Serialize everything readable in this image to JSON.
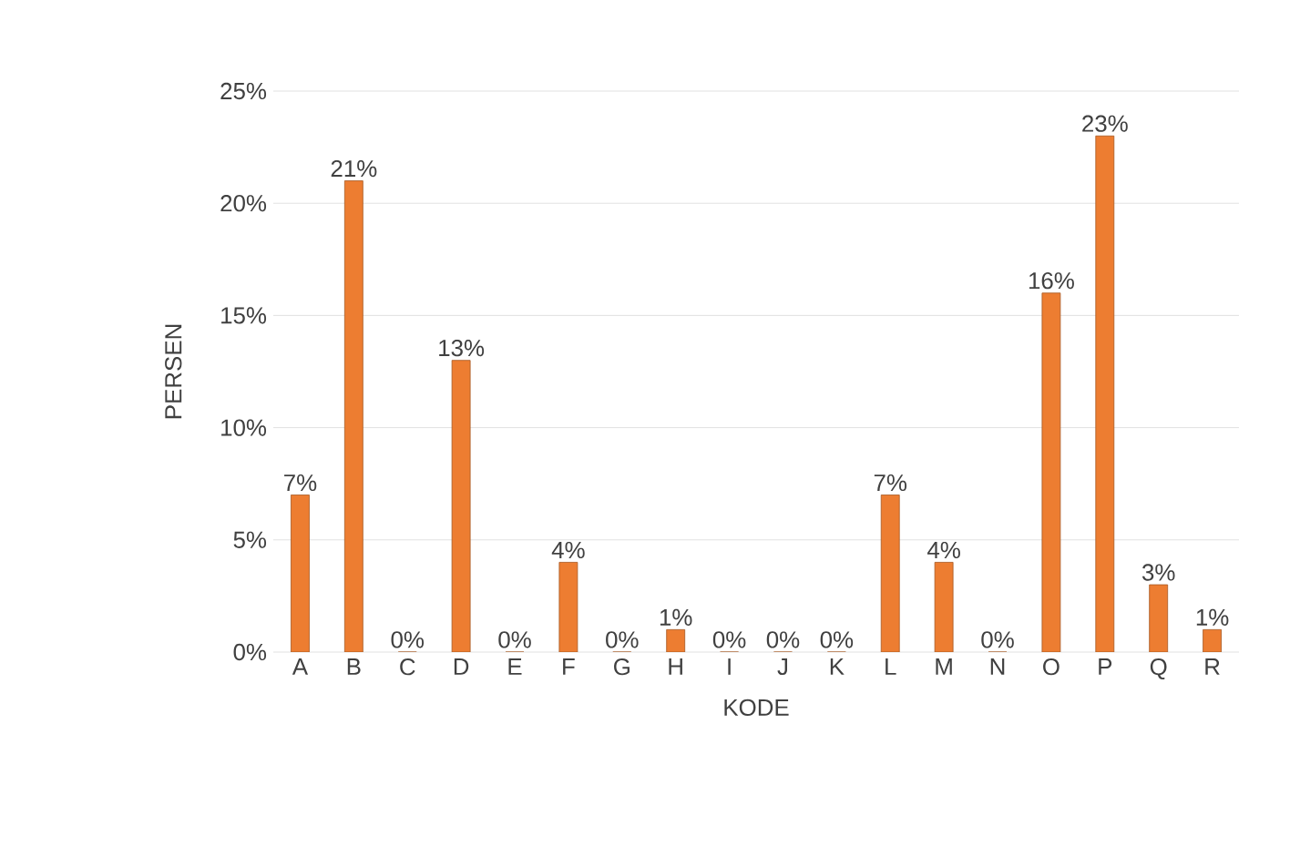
{
  "chart_data": {
    "type": "bar",
    "xlabel": "KODE",
    "ylabel": "PERSEN",
    "categories": [
      "A",
      "B",
      "C",
      "D",
      "E",
      "F",
      "G",
      "H",
      "I",
      "J",
      "K",
      "L",
      "M",
      "N",
      "O",
      "P",
      "Q",
      "R"
    ],
    "values": [
      7,
      21,
      0,
      13,
      0,
      4,
      0,
      1,
      0,
      0,
      0,
      7,
      4,
      0,
      16,
      23,
      3,
      1
    ],
    "value_labels": [
      "7%",
      "21%",
      "0%",
      "13%",
      "0%",
      "4%",
      "0%",
      "1%",
      "0%",
      "0%",
      "0%",
      "7%",
      "4%",
      "0%",
      "16%",
      "23%",
      "3%",
      "1%"
    ],
    "color": "#ed7d31",
    "ylim": [
      0,
      25
    ],
    "yticks": [
      {
        "value": 0,
        "label": "0%"
      },
      {
        "value": 5,
        "label": "5%"
      },
      {
        "value": 10,
        "label": "10%"
      },
      {
        "value": 15,
        "label": "15%"
      },
      {
        "value": 20,
        "label": "20%"
      },
      {
        "value": 25,
        "label": "25%"
      }
    ],
    "grid": "y"
  }
}
